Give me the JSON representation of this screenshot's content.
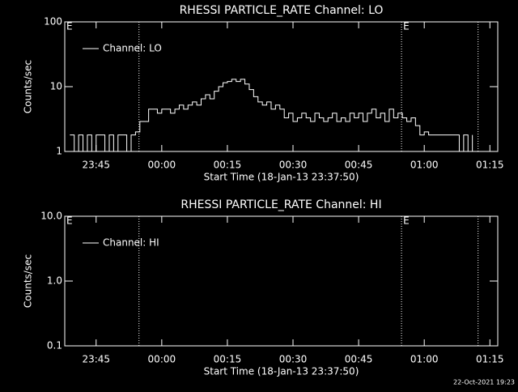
{
  "chart_data": [
    {
      "type": "line",
      "title": "RHESSI PARTICLE_RATE Channel: LO",
      "x_label": "Start Time (18-Jan-13 23:37:50)",
      "y_label": "Counts/sec",
      "log_y": true,
      "legend": "upper left",
      "xlim": [
        -22.17,
        76.8
      ],
      "xticks": [
        {
          "value": -15,
          "label": "23:45"
        },
        {
          "value": 0,
          "label": "00:00"
        },
        {
          "value": 15,
          "label": "00:15"
        },
        {
          "value": 30,
          "label": "00:30"
        },
        {
          "value": 45,
          "label": "00:45"
        },
        {
          "value": 60,
          "label": "01:00"
        },
        {
          "value": 75,
          "label": "01:15"
        }
      ],
      "ylim": [
        1,
        100
      ],
      "yticks": [
        1,
        10,
        100
      ],
      "vlines": [
        -5.2,
        54.8,
        72.3
      ],
      "flags": [
        {
          "x": -22.17,
          "label": "E"
        },
        {
          "x": 54.8,
          "label": "E"
        }
      ],
      "series": [
        {
          "name": "Channel: LO",
          "color": "#ffffff",
          "x": [
            -21,
            -20,
            -19,
            -18,
            -17,
            -16,
            -15,
            -14,
            -13,
            -12,
            -11,
            -10,
            -9,
            -8,
            -7,
            -6,
            -5,
            -4,
            -3,
            -2,
            -1,
            0,
            1,
            2,
            3,
            4,
            5,
            6,
            7,
            8,
            9,
            10,
            11,
            12,
            13,
            14,
            15,
            16,
            17,
            18,
            19,
            20,
            21,
            22,
            23,
            24,
            25,
            26,
            27,
            28,
            29,
            30,
            31,
            32,
            33,
            34,
            35,
            36,
            37,
            38,
            39,
            40,
            41,
            42,
            43,
            44,
            45,
            46,
            47,
            48,
            49,
            50,
            51,
            52,
            53,
            54,
            55,
            56,
            57,
            58,
            59,
            60,
            61,
            62,
            63,
            64,
            65,
            66,
            67,
            68,
            69,
            70,
            71
          ],
          "values": [
            1.8,
            1,
            1.8,
            1,
            1.8,
            1,
            1.8,
            1.8,
            1,
            1.8,
            1,
            1.8,
            1.8,
            1,
            1.8,
            2,
            2.9,
            2.9,
            4.5,
            4.5,
            3.9,
            4.5,
            4.5,
            3.9,
            4.5,
            5.2,
            4.5,
            5.2,
            5.8,
            5.2,
            6.5,
            7.5,
            6.5,
            8.5,
            10,
            11.5,
            12,
            13,
            12,
            13,
            11,
            9,
            7,
            5.8,
            5.2,
            5.8,
            4.5,
            5.2,
            4.5,
            3.3,
            3.9,
            2.9,
            3.3,
            3.9,
            3.3,
            2.9,
            3.9,
            3.3,
            2.9,
            3.3,
            3.9,
            2.9,
            3.3,
            2.9,
            3.9,
            3.3,
            3.9,
            2.9,
            3.9,
            4.5,
            3.3,
            3.9,
            2.9,
            4.5,
            3.3,
            3.9,
            3.3,
            2.9,
            3.3,
            2.5,
            1.8,
            2,
            1.8,
            1.8,
            1.8,
            1.8,
            1.8,
            1.8,
            1.8,
            1,
            1.8,
            1,
            1.8
          ]
        }
      ]
    },
    {
      "type": "line",
      "title": "RHESSI PARTICLE_RATE Channel: HI",
      "x_label": "Start Time (18-Jan-13 23:37:50)",
      "y_label": "Counts/sec",
      "log_y": true,
      "legend": "upper left",
      "xlim": [
        -22.17,
        76.8
      ],
      "xticks": [
        {
          "value": -15,
          "label": "23:45"
        },
        {
          "value": 0,
          "label": "00:00"
        },
        {
          "value": 15,
          "label": "00:15"
        },
        {
          "value": 30,
          "label": "00:30"
        },
        {
          "value": 45,
          "label": "00:45"
        },
        {
          "value": 60,
          "label": "01:00"
        },
        {
          "value": 75,
          "label": "01:15"
        }
      ],
      "ylim": [
        0.1,
        10
      ],
      "yticks": [
        0.1,
        {
          "value": 1,
          "label": "1.0"
        },
        {
          "value": 10,
          "label": "10.0"
        }
      ],
      "vlines": [
        -5.2,
        54.8,
        72.3
      ],
      "flags": [
        {
          "x": -22.17,
          "label": "E"
        },
        {
          "x": 54.8,
          "label": "E"
        }
      ],
      "series": [
        {
          "name": "Channel: HI",
          "color": "#ffffff",
          "x": [],
          "values": []
        }
      ]
    }
  ],
  "footer": "22-Oct-2021 19:23"
}
